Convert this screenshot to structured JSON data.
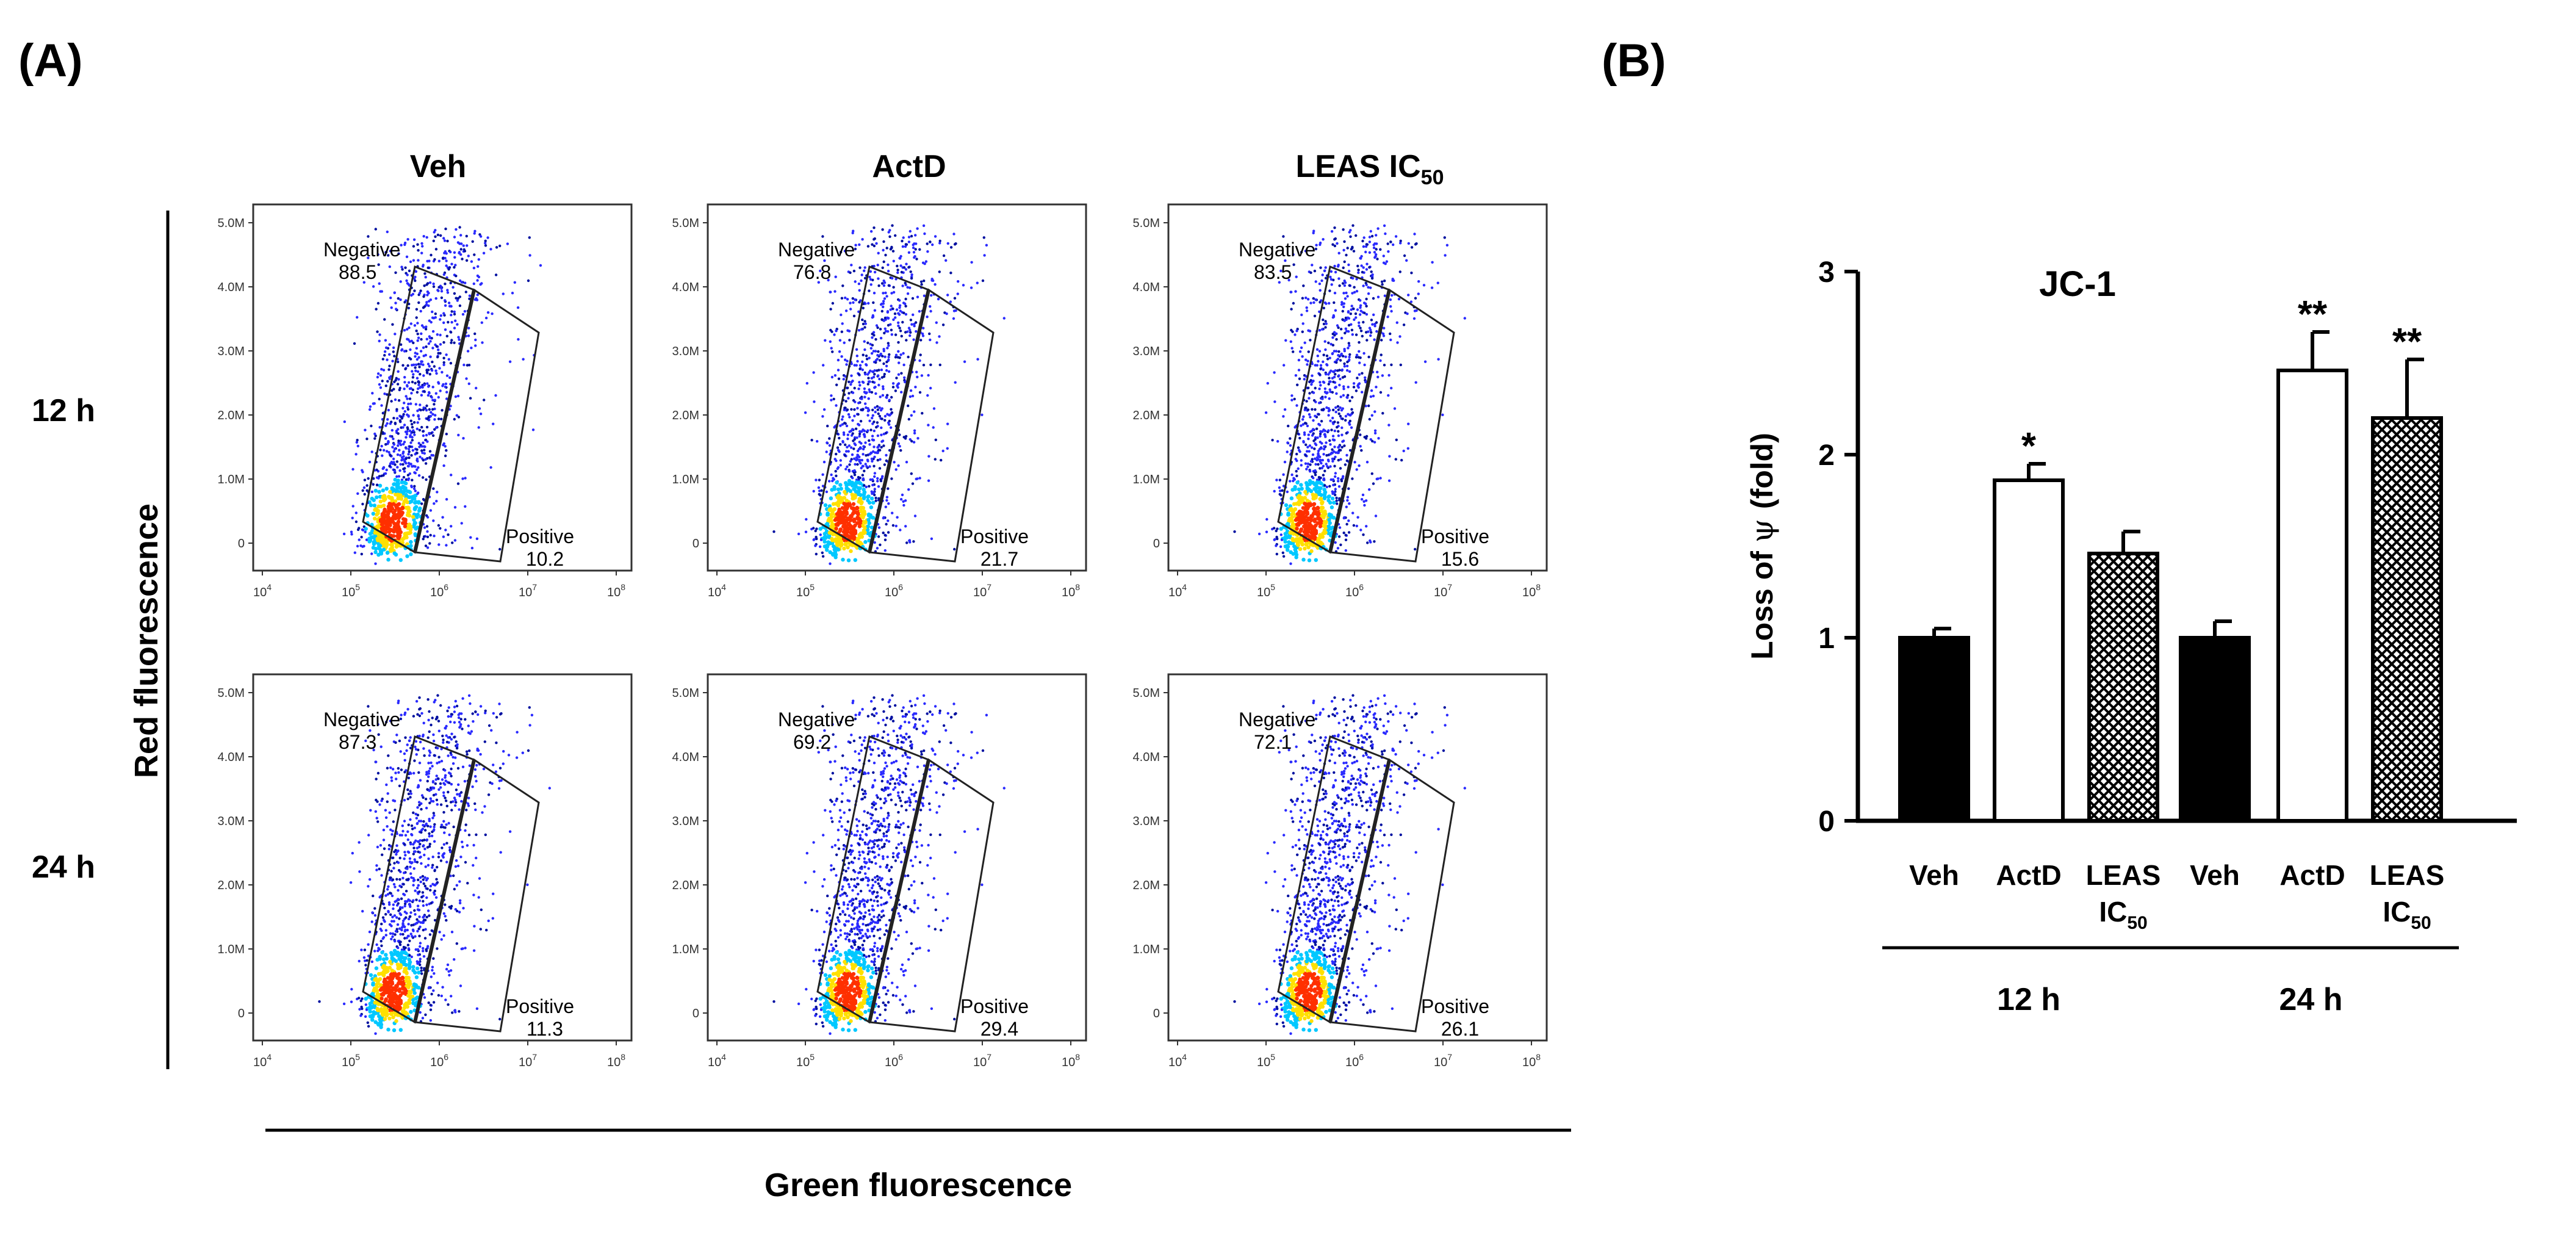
{
  "panel_a": {
    "label": "(A)",
    "columns": [
      "Veh",
      "ActD",
      "LEAS IC"
    ],
    "column_subscripts": [
      "",
      "",
      "50"
    ],
    "rows": [
      "12 h",
      "24 h"
    ],
    "y_axis_label": "Red fluorescence",
    "x_axis_label": "Green fluorescence",
    "y_ticks": [
      "0",
      "1.0M",
      "2.0M",
      "3.0M",
      "4.0M",
      "5.0M"
    ],
    "x_ticks": [
      {
        "base": "10",
        "exp": "4"
      },
      {
        "base": "10",
        "exp": "5"
      },
      {
        "base": "10",
        "exp": "6"
      },
      {
        "base": "10",
        "exp": "7"
      },
      {
        "base": "10",
        "exp": "8"
      }
    ],
    "gate_negative_label": "Negative",
    "gate_positive_label": "Positive",
    "plots": [
      {
        "row": 0,
        "col": 0,
        "negative": "88.5",
        "positive": "10.2"
      },
      {
        "row": 0,
        "col": 1,
        "negative": "76.8",
        "positive": "21.7"
      },
      {
        "row": 0,
        "col": 2,
        "negative": "83.5",
        "positive": "15.6"
      },
      {
        "row": 1,
        "col": 0,
        "negative": "87.3",
        "positive": "11.3"
      },
      {
        "row": 1,
        "col": 1,
        "negative": "69.2",
        "positive": "29.4"
      },
      {
        "row": 1,
        "col": 2,
        "negative": "72.1",
        "positive": "26.1"
      }
    ],
    "colors": {
      "low": "#2a2aff",
      "mid": "#00c8ff",
      "high": "#ffe000",
      "peak": "#ff3000",
      "gate": "#222222"
    }
  },
  "chart_data": {
    "type": "bar",
    "label": "(B)",
    "title": "JC-1",
    "ylabel_main": "Loss of",
    "ylabel_symbol": "ψ",
    "ylabel_unit": "(fold)",
    "ylim": [
      0,
      3
    ],
    "yticks": [
      "0",
      "1",
      "2",
      "3"
    ],
    "bars": [
      {
        "label": "Veh",
        "sub": "",
        "value": 1.0,
        "error": 0.05,
        "fill": "solid",
        "sig": ""
      },
      {
        "label": "ActD",
        "sub": "",
        "value": 1.86,
        "error": 0.09,
        "fill": "open",
        "sig": "*"
      },
      {
        "label": "LEAS",
        "label2": "IC",
        "sub": "50",
        "value": 1.46,
        "error": 0.12,
        "fill": "hatch",
        "sig": ""
      },
      {
        "label": "Veh",
        "sub": "",
        "value": 1.0,
        "error": 0.09,
        "fill": "solid",
        "sig": ""
      },
      {
        "label": "ActD",
        "sub": "",
        "value": 2.46,
        "error": 0.21,
        "fill": "open",
        "sig": "**"
      },
      {
        "label": "LEAS",
        "label2": "IC",
        "sub": "50",
        "value": 2.2,
        "error": 0.32,
        "fill": "hatch",
        "sig": "**"
      }
    ],
    "groups": [
      {
        "label": "12 h",
        "bars": [
          0,
          1,
          2
        ]
      },
      {
        "label": "24 h",
        "bars": [
          3,
          4,
          5
        ]
      }
    ]
  }
}
